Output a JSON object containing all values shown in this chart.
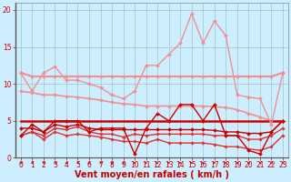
{
  "bg_color": "#cceeff",
  "grid_color": "#aacccc",
  "xlabel": "Vent moyen/en rafales ( km/h )",
  "xlim": [
    -0.5,
    23.5
  ],
  "ylim": [
    0,
    21
  ],
  "yticks": [
    0,
    5,
    10,
    15,
    20
  ],
  "xticks": [
    0,
    1,
    2,
    3,
    4,
    5,
    6,
    7,
    8,
    9,
    10,
    11,
    12,
    13,
    14,
    15,
    16,
    17,
    18,
    19,
    20,
    21,
    22,
    23
  ],
  "x": [
    0,
    1,
    2,
    3,
    4,
    5,
    6,
    7,
    8,
    9,
    10,
    11,
    12,
    13,
    14,
    15,
    16,
    17,
    18,
    19,
    20,
    21,
    22,
    23
  ],
  "series": [
    {
      "name": "pink_volatile",
      "y": [
        11.5,
        9.0,
        11.5,
        12.3,
        10.5,
        10.5,
        10.0,
        9.5,
        8.5,
        8.0,
        9.0,
        12.5,
        12.5,
        14.0,
        15.5,
        19.5,
        15.5,
        18.5,
        16.5,
        8.5,
        8.2,
        8.0,
        4.5,
        11.5
      ],
      "color": "#f09090",
      "lw": 1.0,
      "marker": "D",
      "ms": 2.0,
      "zorder": 3
    },
    {
      "name": "pink_flat_upper",
      "y": [
        11.5,
        11.0,
        11.0,
        11.0,
        11.0,
        11.0,
        11.0,
        11.0,
        11.0,
        11.0,
        11.0,
        11.0,
        11.0,
        11.0,
        11.0,
        11.0,
        11.0,
        11.0,
        11.0,
        11.0,
        11.0,
        11.0,
        11.0,
        11.5
      ],
      "color": "#f09090",
      "lw": 1.5,
      "marker": "D",
      "ms": 2.0,
      "zorder": 2
    },
    {
      "name": "pink_declining",
      "y": [
        9.0,
        8.8,
        8.5,
        8.5,
        8.3,
        8.2,
        8.0,
        7.8,
        7.5,
        7.3,
        7.2,
        7.0,
        7.0,
        7.0,
        7.0,
        7.0,
        7.0,
        6.9,
        6.8,
        6.5,
        6.0,
        5.5,
        5.0,
        5.0
      ],
      "color": "#f09090",
      "lw": 1.2,
      "marker": "D",
      "ms": 2.0,
      "zorder": 2
    },
    {
      "name": "red_volatile",
      "y": [
        3.0,
        4.5,
        3.5,
        5.0,
        5.0,
        5.0,
        3.5,
        4.0,
        4.0,
        4.0,
        0.5,
        4.0,
        6.0,
        5.0,
        7.2,
        7.2,
        5.0,
        7.2,
        3.0,
        3.0,
        1.0,
        0.5,
        3.5,
        5.0
      ],
      "color": "#cc0000",
      "lw": 1.0,
      "marker": "D",
      "ms": 2.0,
      "zorder": 4
    },
    {
      "name": "red_flat",
      "y": [
        5.0,
        5.0,
        5.0,
        5.0,
        5.0,
        5.0,
        5.0,
        5.0,
        5.0,
        5.0,
        5.0,
        5.0,
        5.0,
        5.0,
        5.0,
        5.0,
        5.0,
        5.0,
        5.0,
        5.0,
        5.0,
        5.0,
        5.0,
        5.0
      ],
      "color": "#cc0000",
      "lw": 1.8,
      "marker": null,
      "ms": 0,
      "zorder": 2
    },
    {
      "name": "red_declining_mid",
      "y": [
        4.0,
        4.0,
        3.5,
        4.5,
        4.2,
        4.5,
        4.0,
        3.8,
        3.8,
        3.8,
        3.8,
        3.8,
        3.8,
        3.8,
        3.8,
        3.8,
        3.8,
        3.7,
        3.5,
        3.5,
        3.3,
        3.3,
        3.5,
        5.0
      ],
      "color": "#cc0000",
      "lw": 1.0,
      "marker": "D",
      "ms": 2.0,
      "zorder": 3
    },
    {
      "name": "red_declining_low",
      "y": [
        3.0,
        3.5,
        3.0,
        4.0,
        3.8,
        4.2,
        3.5,
        3.2,
        3.2,
        2.8,
        3.2,
        3.0,
        3.2,
        3.2,
        3.2,
        3.2,
        3.2,
        3.0,
        3.0,
        3.0,
        2.5,
        2.5,
        3.0,
        4.0
      ],
      "color": "#dd3333",
      "lw": 1.0,
      "marker": "D",
      "ms": 1.8,
      "zorder": 3
    },
    {
      "name": "red_steep_decline",
      "y": [
        3.0,
        3.5,
        2.5,
        3.5,
        3.0,
        3.2,
        3.0,
        2.8,
        2.5,
        2.2,
        2.2,
        2.0,
        2.5,
        2.0,
        2.0,
        2.0,
        2.0,
        1.8,
        1.5,
        1.5,
        1.2,
        1.0,
        1.5,
        3.0
      ],
      "color": "#dd3333",
      "lw": 1.0,
      "marker": "D",
      "ms": 1.8,
      "zorder": 2
    }
  ],
  "arrow_directions": [
    180,
    180,
    180,
    180,
    180,
    180,
    180,
    180,
    180,
    180,
    0,
    0,
    0,
    0,
    0,
    0,
    0,
    0,
    0,
    180,
    180,
    180,
    180,
    180
  ],
  "arrow_color": "#cc0000",
  "xlabel_color": "#cc0000",
  "xlabel_fontsize": 7,
  "tick_color": "#cc0000",
  "tick_fontsize": 5.5
}
